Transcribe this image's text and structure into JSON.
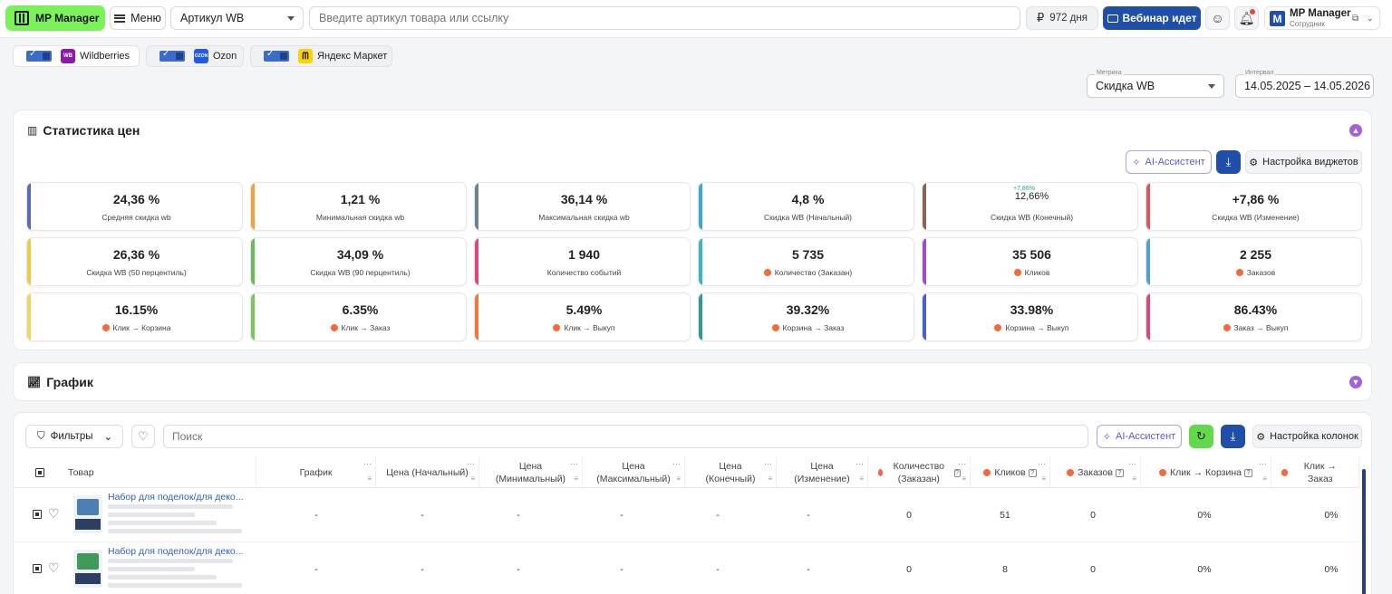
{
  "header": {
    "logo": "MP Manager",
    "menu_label": "Меню",
    "article_select": "Артикул WB",
    "search_placeholder": "Введите артикул товара или ссылку",
    "days": "972 дня",
    "webinar": "Вебинар идет",
    "profile_name": "MP Manager",
    "profile_role": "Сотрудник"
  },
  "marketplaces": [
    {
      "name": "Wildberries",
      "logo": "WB",
      "color": "#8c1bab"
    },
    {
      "name": "Ozon",
      "logo": "OZON",
      "color": "#2458e6"
    },
    {
      "name": "Яндекс Маркет",
      "logo": "",
      "color": "#fcd200"
    }
  ],
  "metric": {
    "label": "Метрика",
    "value": "Скидка WB"
  },
  "interval": {
    "label": "Интервал",
    "value": "14.05.2025 – 14.05.2026"
  },
  "stats_panel": {
    "title": "Статистика цен",
    "ai_button": "AI-Ассистент",
    "settings_button": "Настройка виджетов",
    "cards": [
      {
        "value": "24,36 %",
        "label": "Средняя скидка wb",
        "color": "#5b6bb5",
        "dot": false
      },
      {
        "value": "1,21 %",
        "label": "Минимальная скидка wb",
        "color": "#f1a33a",
        "dot": false
      },
      {
        "value": "36,14 %",
        "label": "Максимальная скидка wb",
        "color": "#6c8391",
        "dot": false
      },
      {
        "value": "4,8 %",
        "label": "Скидка WB (Начальный)",
        "color": "#39a7dc",
        "dot": false
      },
      {
        "value": "12,66%",
        "sup": "+7,86%",
        "label": "Скидка WB (Конечный)",
        "color": "#8a6553",
        "dot": false
      },
      {
        "value": "+7,86 %",
        "label": "Скидка WB (Изменение)",
        "color": "#e25555",
        "dot": false
      },
      {
        "value": "26,36 %",
        "label": "Скидка WB (50 перцентиль)",
        "color": "#f2c94c",
        "dot": false
      },
      {
        "value": "34,09 %",
        "label": "Скидка WB (90 перцентиль)",
        "color": "#6cbb5a",
        "dot": false
      },
      {
        "value": "1 940",
        "label": "Количество событий",
        "color": "#e0457b",
        "dot": false
      },
      {
        "value": "5 735",
        "label": "Количество (Заказан)",
        "color": "#39b5c4",
        "dot": true
      },
      {
        "value": "35 506",
        "label": "Кликов",
        "color": "#a24bc9",
        "dot": true
      },
      {
        "value": "2 255",
        "label": "Заказов",
        "color": "#4f9fd9",
        "dot": true
      },
      {
        "value": "16.15%",
        "label": "Клик → Корзина",
        "color": "#f2d561",
        "dot": true
      },
      {
        "value": "6.35%",
        "label": "Клик → Заказ",
        "color": "#7cc45e",
        "dot": true
      },
      {
        "value": "5.49%",
        "label": "Клик → Выкуп",
        "color": "#ef7a3a",
        "dot": true
      },
      {
        "value": "39.32%",
        "label": "Корзина → Заказ",
        "color": "#2a9d8f",
        "dot": true
      },
      {
        "value": "33.98%",
        "label": "Корзина → Выкуп",
        "color": "#4b5fc9",
        "dot": true
      },
      {
        "value": "86.43%",
        "label": "Заказ → Выкуп",
        "color": "#e0457b",
        "dot": true
      }
    ]
  },
  "chart_panel": {
    "title": "График"
  },
  "table": {
    "filters": "Фильтры",
    "search_placeholder": "Поиск",
    "ai_button": "AI-Ассистент",
    "settings_button": "Настройка колонок",
    "columns": [
      {
        "label": "Товар",
        "dot": false
      },
      {
        "label": "График",
        "dot": false
      },
      {
        "label": "Цена (Начальный)",
        "dot": false
      },
      {
        "label": "Цена (Минимальный)",
        "dot": false
      },
      {
        "label": "Цена (Максимальный)",
        "dot": false
      },
      {
        "label": "Цена (Конечный)",
        "dot": false
      },
      {
        "label": "Цена (Изменение)",
        "dot": false
      },
      {
        "label": "Количество (Заказан)",
        "dot": true
      },
      {
        "label": "Кликов",
        "dot": true
      },
      {
        "label": "Заказов",
        "dot": true
      },
      {
        "label": "Клик → Корзина",
        "dot": true
      },
      {
        "label": "Клик → Заказ",
        "dot": true
      }
    ],
    "rows": [
      {
        "name": "Набор для поделок/для деко...",
        "graph": "-",
        "p_start": "-",
        "p_min": "-",
        "p_max": "-",
        "p_end": "-",
        "p_change": "-",
        "qty": "0",
        "clicks": "51",
        "orders": "0",
        "c2cart": "0%",
        "c2order": "0%"
      },
      {
        "name": "Набор для поделок/для деко...",
        "graph": "-",
        "p_start": "-",
        "p_min": "-",
        "p_max": "-",
        "p_end": "-",
        "p_change": "-",
        "qty": "0",
        "clicks": "8",
        "orders": "0",
        "c2cart": "0%",
        "c2order": "0%"
      }
    ]
  }
}
